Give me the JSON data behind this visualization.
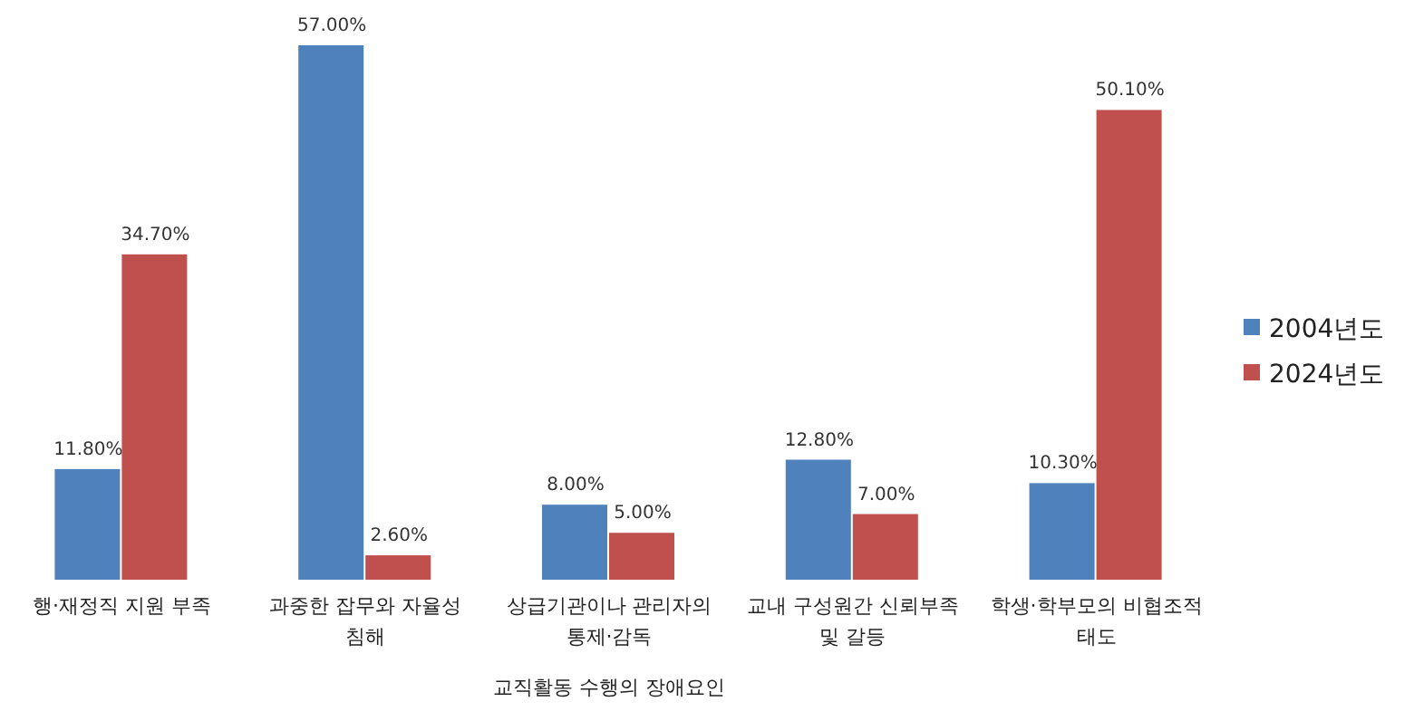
{
  "chart_data": {
    "type": "bar",
    "xlabel": "교직활동 수행의 장애요인",
    "categories": [
      "행·재정직 지원 부족",
      "과중한 잡무와 자율성 침해",
      "상급기관이나 관리자의 통제·감독",
      "교내 구성원간 신뢰부족 및 갈등",
      "학생·학부모의 비협조적 태도"
    ],
    "series": [
      {
        "name": "2004년도",
        "color": "#4f81bd",
        "values": [
          11.8,
          57.0,
          8.0,
          12.8,
          10.3
        ],
        "value_labels": [
          "11.80%",
          "57.00%",
          "8.00%",
          "12.80%",
          "10.30%"
        ]
      },
      {
        "name": "2024년도",
        "color": "#c0504d",
        "values": [
          34.7,
          2.6,
          5.0,
          7.0,
          50.1
        ],
        "value_labels": [
          "34.70%",
          "2.60%",
          "5.00%",
          "7.00%",
          "50.10%"
        ]
      }
    ],
    "legend": "right"
  }
}
